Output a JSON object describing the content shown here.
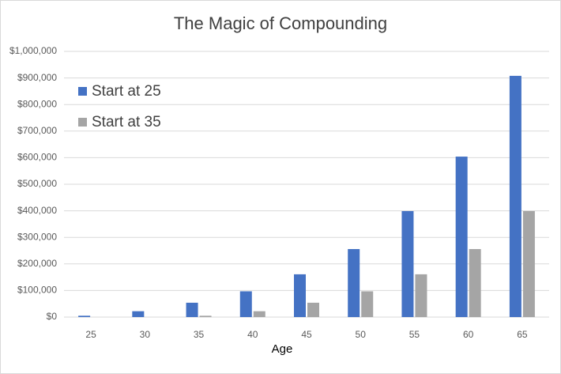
{
  "chart_data": {
    "type": "bar",
    "title": "The Magic of Compounding",
    "x_label": "Age",
    "categories": [
      "25",
      "30",
      "35",
      "40",
      "45",
      "50",
      "55",
      "60",
      "65"
    ],
    "series": [
      {
        "name": "Start at 25",
        "color": "#4472c4",
        "values": [
          5000,
          22000,
          54000,
          97000,
          161000,
          256000,
          399000,
          604000,
          908000
        ]
      },
      {
        "name": "Start at 35",
        "color": "#a5a5a5",
        "values": [
          null,
          null,
          5000,
          22000,
          54000,
          97000,
          161000,
          256000,
          399000
        ]
      }
    ],
    "ylim": [
      0,
      1000000
    ],
    "yticks": [
      {
        "value": 0,
        "label": "$0"
      },
      {
        "value": 100000,
        "label": "$100,000"
      },
      {
        "value": 200000,
        "label": "$200,000"
      },
      {
        "value": 300000,
        "label": "$300,000"
      },
      {
        "value": 400000,
        "label": "$400,000"
      },
      {
        "value": 500000,
        "label": "$500,000"
      },
      {
        "value": 600000,
        "label": "$600,000"
      },
      {
        "value": 700000,
        "label": "$700,000"
      },
      {
        "value": 800000,
        "label": "$800,000"
      },
      {
        "value": 900000,
        "label": "$900,000"
      },
      {
        "value": 1000000,
        "label": "$1,000,000"
      }
    ],
    "grid": true,
    "legend": "top-left"
  }
}
